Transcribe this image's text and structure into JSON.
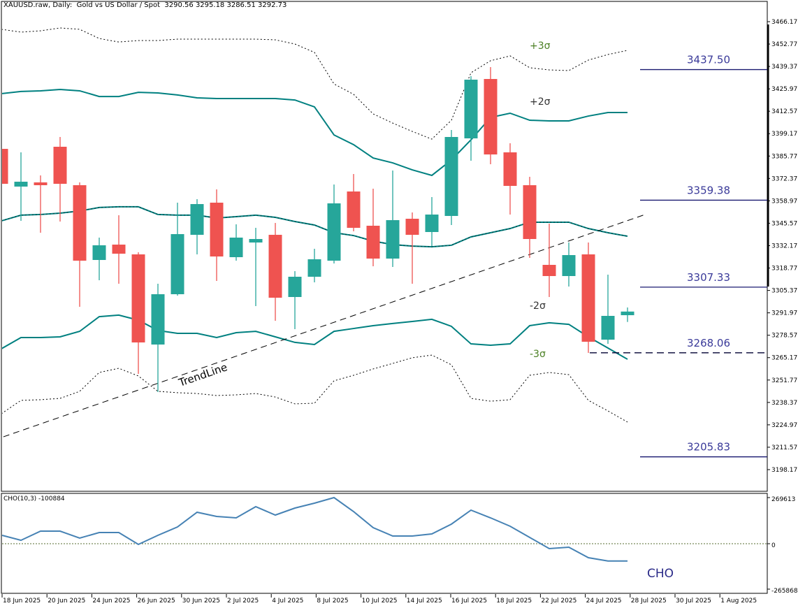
{
  "header": {
    "symbol": "XAUUSD.raw, Daily:  Gold vs US Dollar / Spot",
    "ohlc": "3290.56 3295.18 3286.51 3292.73"
  },
  "colors": {
    "bull": "#26a69a",
    "bear": "#ef5350",
    "band": "#008080",
    "level_line": "#191970",
    "level_text": "#3a3a99",
    "cho_line": "#4682b4",
    "zero_line": "#556b2f",
    "sigma3": "#4a7f22",
    "sigma2": "#333333"
  },
  "price_axis": {
    "min": 3185.0,
    "max": 3475.0,
    "ticks": [
      "3466.17",
      "3452.77",
      "3439.37",
      "3425.97",
      "3412.57",
      "3399.17",
      "3385.77",
      "3372.37",
      "3358.97",
      "3345.57",
      "3332.17",
      "3318.77",
      "3305.37",
      "3291.97",
      "3278.57",
      "3265.17",
      "3251.77",
      "3238.37",
      "3224.97",
      "3211.57",
      "3198.17"
    ]
  },
  "candles": [
    [
      3390.07,
      3390.07,
      3369.17,
      3369.17
    ],
    [
      3367.5,
      3387.98,
      3347.01,
      3370.42
    ],
    [
      3370.01,
      3374.19,
      3339.9,
      3368.33
    ],
    [
      3391.33,
      3397.18,
      3346.59,
      3369.17
    ],
    [
      3368.33,
      3370.01,
      3295.58,
      3323.18
    ],
    [
      3323.6,
      3336.98,
      3311.47,
      3332.38
    ],
    [
      3332.79,
      3350.36,
      3309.38,
      3327.36
    ],
    [
      3326.94,
      3328.2,
      3255.45,
      3274.26
    ],
    [
      3273.01,
      3309.38,
      3244.58,
      3303.11
    ],
    [
      3303.11,
      3357.88,
      3302.27,
      3339.07
    ],
    [
      3338.65,
      3359.97,
      3326.94,
      3357.04
    ],
    [
      3357.88,
      3365.82,
      3311.05,
      3325.69
    ],
    [
      3325.27,
      3344.92,
      3323.18,
      3336.98
    ],
    [
      3334.05,
      3342.83,
      3296.0,
      3336.14
    ],
    [
      3338.65,
      3345.76,
      3287.22,
      3301.02
    ],
    [
      3301.44,
      3316.91,
      3282.2,
      3313.56
    ],
    [
      3313.56,
      3330.29,
      3310.22,
      3324.01
    ],
    [
      3323.18,
      3368.75,
      3321.51,
      3357.46
    ],
    [
      3364.57,
      3375.02,
      3340.74,
      3342.83
    ],
    [
      3344.08,
      3366.24,
      3319.83,
      3324.43
    ],
    [
      3324.43,
      3377.11,
      3319.42,
      3347.43
    ],
    [
      3348.26,
      3352.03,
      3309.38,
      3338.65
    ],
    [
      3340.32,
      3361.23,
      3331.96,
      3350.77
    ],
    [
      3349.94,
      3401.36,
      3344.5,
      3397.18
    ],
    [
      3396.35,
      3433.56,
      3382.97,
      3431.47
    ],
    [
      3431.88,
      3438.99,
      3380.88,
      3386.73
    ],
    [
      3387.98,
      3393.42,
      3350.77,
      3367.92
    ],
    [
      3368.33,
      3373.35,
      3324.85,
      3336.14
    ],
    [
      3320.67,
      3345.34,
      3301.44,
      3313.98
    ],
    [
      3313.98,
      3334.05,
      3307.71,
      3326.52
    ],
    [
      3326.94,
      3334.05,
      3267.99,
      3274.68
    ],
    [
      3275.93,
      3314.82,
      3273.42,
      3290.15
    ],
    [
      3290.56,
      3295.18,
      3286.51,
      3292.73
    ]
  ],
  "bands": {
    "upper3": [
      3461.6,
      3459.9,
      3460.7,
      3462.4,
      3461.6,
      3456.1,
      3454.0,
      3454.9,
      3454.9,
      3455.7,
      3455.7,
      3455.7,
      3455.7,
      3455.7,
      3455.3,
      3452.8,
      3447.8,
      3428.9,
      3422.7,
      3411.0,
      3405.5,
      3400.5,
      3395.9,
      3407.2,
      3435.6,
      3442.8,
      3445.7,
      3438.6,
      3437.3,
      3436.9,
      3443.2,
      3446.5,
      3449.0
    ],
    "upper2": [
      3423.1,
      3424.4,
      3424.8,
      3425.6,
      3424.8,
      3421.4,
      3421.4,
      3423.9,
      3423.5,
      3422.3,
      3420.6,
      3420.2,
      3420.2,
      3420.2,
      3420.2,
      3419.3,
      3415.2,
      3398.4,
      3392.6,
      3384.6,
      3381.7,
      3377.5,
      3374.2,
      3383.4,
      3395.5,
      3408.9,
      3411.4,
      3407.2,
      3406.8,
      3406.8,
      3409.7,
      3411.8,
      3411.8
    ],
    "middle": [
      3347.0,
      3350.4,
      3350.8,
      3351.6,
      3352.9,
      3355.0,
      3355.4,
      3355.4,
      3350.8,
      3350.4,
      3350.4,
      3348.7,
      3349.5,
      3350.4,
      3349.1,
      3346.6,
      3344.5,
      3339.9,
      3338.2,
      3334.9,
      3332.8,
      3331.9,
      3331.5,
      3332.4,
      3337.4,
      3339.9,
      3342.4,
      3346.2,
      3346.2,
      3346.2,
      3342.4,
      3339.9,
      3337.8
    ],
    "lower2": [
      3270.5,
      3277.2,
      3277.2,
      3277.6,
      3280.9,
      3289.7,
      3290.6,
      3287.6,
      3281.4,
      3279.7,
      3279.7,
      3277.2,
      3280.1,
      3280.9,
      3277.6,
      3274.3,
      3273.0,
      3280.9,
      3282.6,
      3284.3,
      3285.6,
      3286.8,
      3288.1,
      3283.9,
      3273.4,
      3272.6,
      3273.4,
      3284.3,
      3286.0,
      3285.1,
      3277.6,
      3270.9,
      3264.2
    ],
    "lower3": [
      3231.6,
      3239.6,
      3240.0,
      3240.8,
      3245.0,
      3256.3,
      3258.8,
      3254.2,
      3245.0,
      3244.2,
      3243.7,
      3242.5,
      3242.9,
      3243.7,
      3241.6,
      3237.5,
      3237.9,
      3251.3,
      3254.6,
      3258.4,
      3261.7,
      3265.1,
      3266.7,
      3260.9,
      3240.8,
      3239.1,
      3240.0,
      3254.6,
      3256.3,
      3255.0,
      3239.6,
      3233.3,
      3226.6
    ]
  },
  "sigma_labels": [
    {
      "text": "+3σ",
      "price": 3452.0,
      "kind": "sigma3"
    },
    {
      "text": "+2σ",
      "price": 3418.5,
      "kind": "sigma2"
    },
    {
      "text": "-2σ",
      "price": 3296.5,
      "kind": "sigma2"
    },
    {
      "text": "-3σ",
      "price": 3267.5,
      "kind": "sigma3"
    }
  ],
  "trendline": {
    "label": "TrendLine",
    "start": {
      "bar": 0.1,
      "price": 3217.8
    },
    "end": {
      "bar": 33,
      "price": 3351.2
    }
  },
  "levels": [
    {
      "label": "3437.50",
      "price": 3437.5,
      "dashed": false,
      "from_bar": 33
    },
    {
      "label": "3359.38",
      "price": 3359.38,
      "dashed": false,
      "from_bar": 33
    },
    {
      "label": "3307.33",
      "price": 3307.33,
      "dashed": false,
      "from_bar": 33
    },
    {
      "label": "3268.06",
      "price": 3268.06,
      "dashed": true,
      "from_bar": 30
    },
    {
      "label": "3205.83",
      "price": 3205.83,
      "dashed": false,
      "from_bar": 33
    }
  ],
  "cho": {
    "title": "CHO(10,3) -100884",
    "label": "CHO",
    "axis": {
      "max_label": "269613",
      "zero_label": "0",
      "min_label": "-265868",
      "max": 269613,
      "min": -265868
    },
    "values": [
      49000,
      20000,
      73500,
      73500,
      32700,
      65400,
      65400,
      -4100,
      49000,
      98000,
      183800,
      159300,
      151100,
      216500,
      167500,
      208300,
      236900,
      269600,
      187900,
      94000,
      44900,
      44900,
      57200,
      114400,
      196100,
      151100,
      102100,
      36800,
      -28600,
      -20400,
      -81700,
      -100884,
      -100884
    ]
  },
  "dates": [
    "18 Jun 2025",
    "20 Jun 2025",
    "24 Jun 2025",
    "26 Jun 2025",
    "30 Jun 2025",
    "2 Jul 2025",
    "4 Jul 2025",
    "8 Jul 2025",
    "10 Jul 2025",
    "14 Jul 2025",
    "16 Jul 2025",
    "18 Jul 2025",
    "22 Jul 2025",
    "24 Jul 2025",
    "28 Jul 2025",
    "30 Jul 2025",
    "1 Aug 2025"
  ]
}
